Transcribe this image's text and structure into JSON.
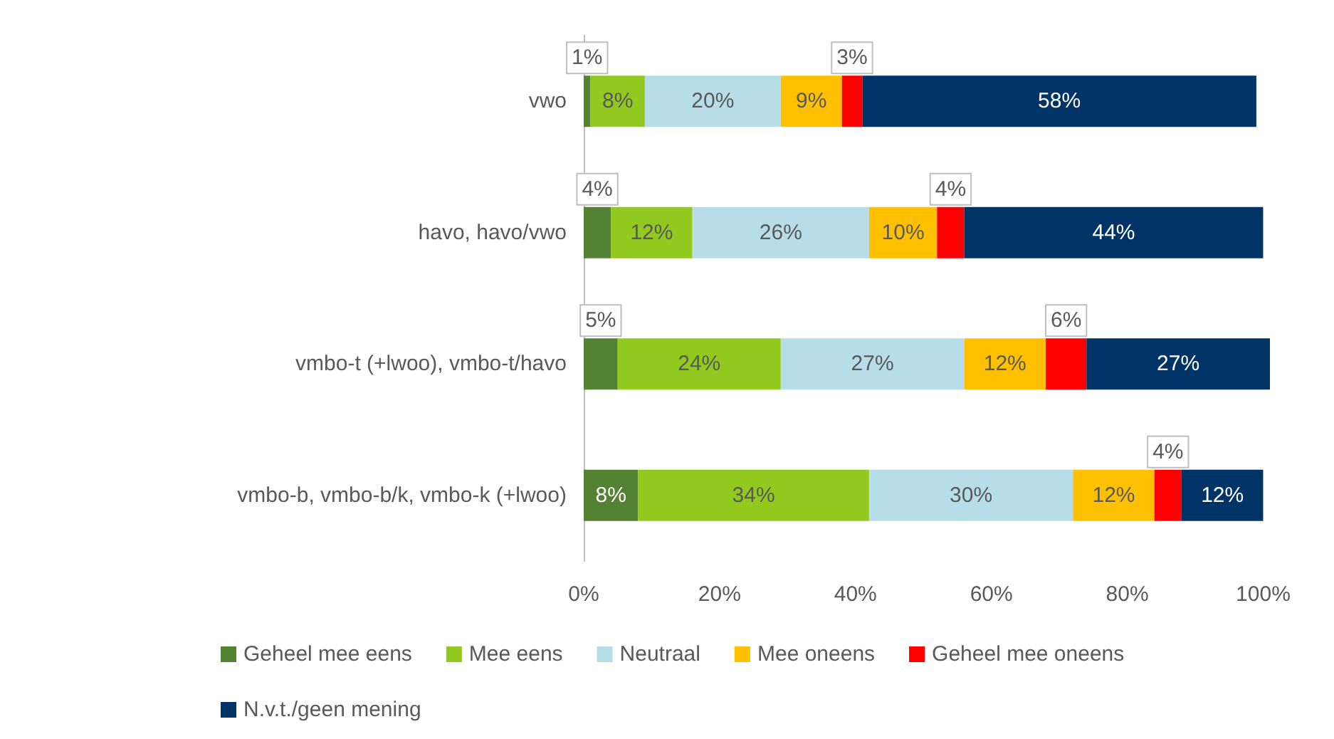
{
  "chart_data": {
    "type": "bar",
    "orientation": "horizontal",
    "stacked": true,
    "grid": false,
    "legend": "bottom",
    "categories": [
      "vwo",
      "havo, havo/vwo",
      "vmbo-t (+lwoo), vmbo-t/havo",
      "vmbo-b, vmbo-b/k, vmbo-k (+lwoo)"
    ],
    "xlim": [
      0,
      101
    ],
    "xticks": [
      {
        "value": 0,
        "label": "0%"
      },
      {
        "value": 20,
        "label": "20%"
      },
      {
        "value": 40,
        "label": "40%"
      },
      {
        "value": 60,
        "label": "60%"
      },
      {
        "value": 80,
        "label": "80%"
      },
      {
        "value": 100,
        "label": "100%"
      }
    ],
    "series": [
      {
        "name": "Geheel mee eens",
        "color": "#548235",
        "values": [
          1,
          4,
          5,
          8
        ],
        "value_labels": [
          "1%",
          "4%",
          "5%",
          "8%"
        ]
      },
      {
        "name": "Mee eens",
        "color": "#92c91e",
        "values": [
          8,
          12,
          24,
          34
        ],
        "value_labels": [
          "8%",
          "12%",
          "24%",
          "34%"
        ]
      },
      {
        "name": "Neutraal",
        "color": "#b7dee8",
        "values": [
          20,
          26,
          27,
          30
        ],
        "value_labels": [
          "20%",
          "26%",
          "27%",
          "30%"
        ]
      },
      {
        "name": "Mee oneens",
        "color": "#ffc000",
        "values": [
          9,
          10,
          12,
          12
        ],
        "value_labels": [
          "9%",
          "10%",
          "12%",
          "12%"
        ]
      },
      {
        "name": "Geheel mee oneens",
        "color": "#ff0000",
        "values": [
          3,
          4,
          6,
          4
        ],
        "value_labels": [
          "3%",
          "4%",
          "6%",
          "4%"
        ]
      },
      {
        "name": "N.v.t./geen mening",
        "color": "#003366",
        "values": [
          58,
          44,
          27,
          12
        ],
        "value_labels": [
          "58%",
          "44%",
          "27%",
          "12%"
        ]
      }
    ]
  }
}
